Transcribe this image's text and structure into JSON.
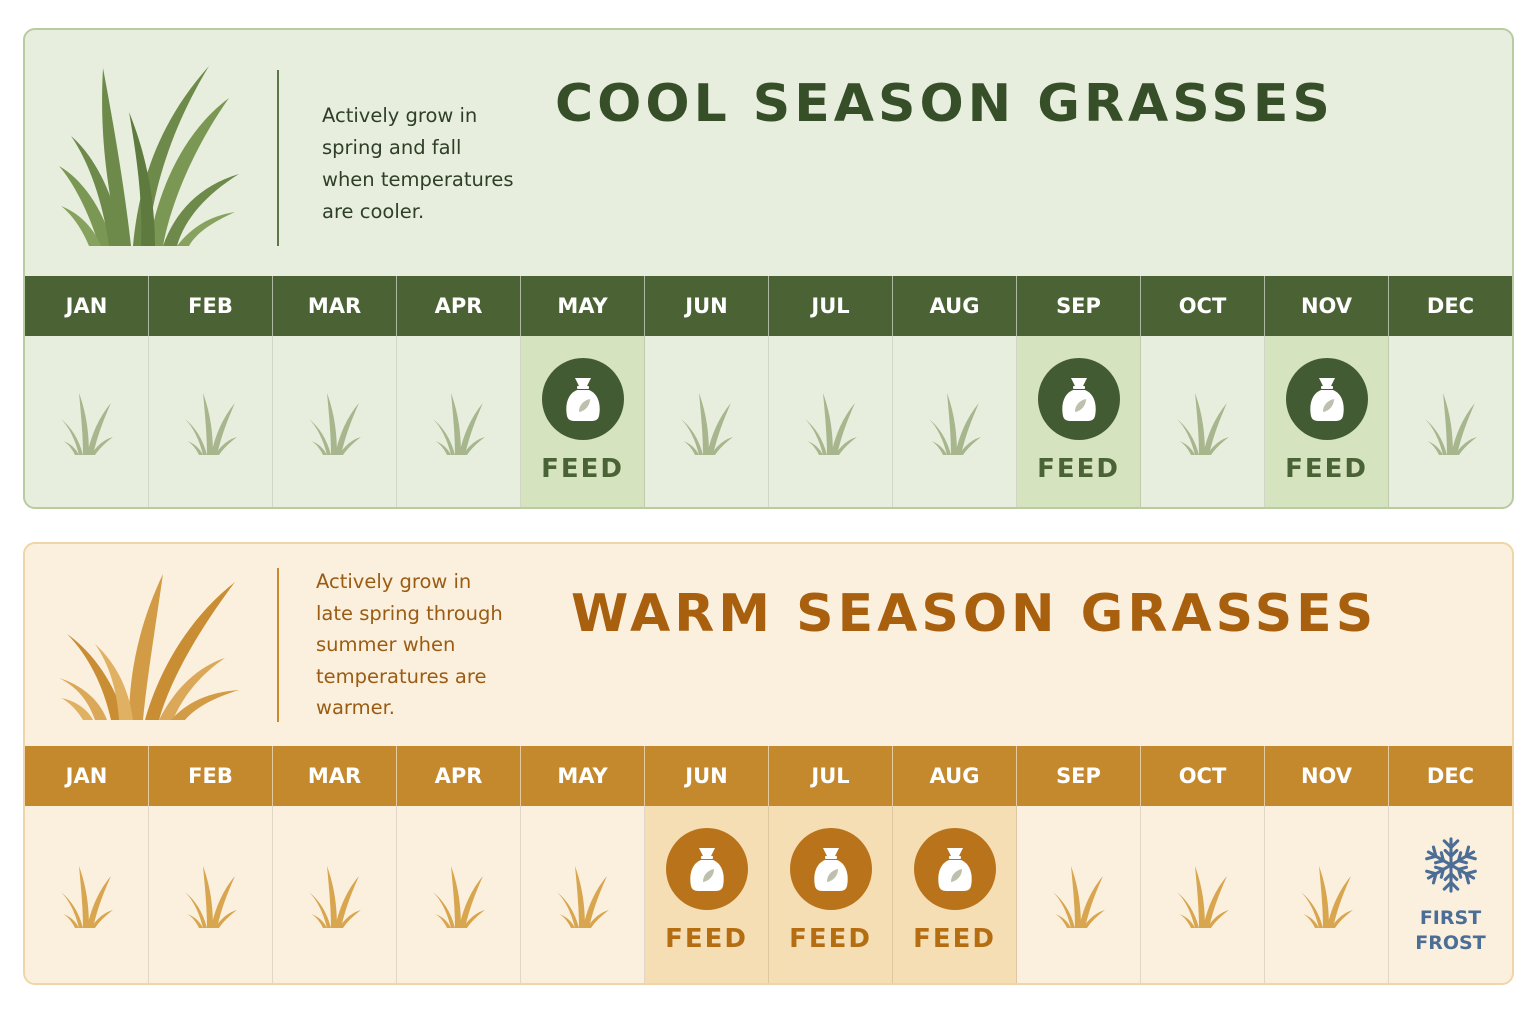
{
  "months": [
    "JAN",
    "FEB",
    "MAR",
    "APR",
    "MAY",
    "JUN",
    "JUL",
    "AUG",
    "SEP",
    "OCT",
    "NOV",
    "DEC"
  ],
  "cool": {
    "title": "COOL SEASON GRASSES",
    "description": [
      "Actively grow in",
      "spring and fall",
      "when temperatures",
      "are cooler."
    ],
    "feed_label": "FEED",
    "feed_months": [
      "MAY",
      "SEP",
      "NOV"
    ],
    "icon": "grass-icon",
    "colors": {
      "accent": "#4b6334",
      "panel": "#e8eedd",
      "feed_cell": "#d5e3bf",
      "grass": "#a8b68e"
    }
  },
  "warm": {
    "title": "WARM SEASON GRASSES",
    "description": [
      "Actively grow in",
      "late spring through",
      "summer when",
      "temperatures are",
      "warmer."
    ],
    "feed_label": "FEED",
    "feed_months": [
      "JUN",
      "JUL",
      "AUG"
    ],
    "frost_month": "DEC",
    "frost_label": [
      "FIRST",
      "FROST"
    ],
    "icon": "grass-icon",
    "colors": {
      "accent": "#c4892c",
      "panel": "#fbf0de",
      "feed_cell": "#f6deb4",
      "grass": "#d9a650",
      "frost": "#4c6e96"
    }
  }
}
